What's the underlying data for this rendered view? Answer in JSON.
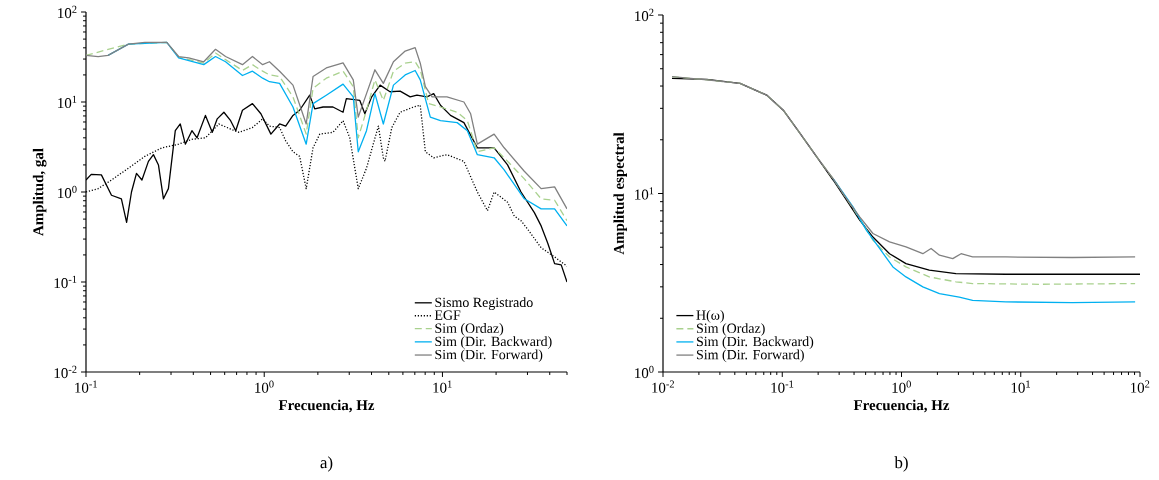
{
  "chart_data": [
    {
      "type": "line",
      "xlabel": "Frecuencia, Hz",
      "ylabel": "Amplitud, gal",
      "annotations": [
        "a)"
      ],
      "log": "xy",
      "legend": "bottom right",
      "xlim": [
        0.1,
        50
      ],
      "ylim": [
        0.01,
        100
      ],
      "xticks": [
        {
          "value": 0.1,
          "label": "10$^{-1}$"
        },
        {
          "value": 1,
          "label": "10$^{0}$"
        },
        {
          "value": 10,
          "label": "10$^{1}$"
        }
      ],
      "yticks": [
        {
          "value": 0.01,
          "label": "10$^{-2}$"
        },
        {
          "value": 0.1,
          "label": "10$^{-1}$"
        },
        {
          "value": 1,
          "label": "10$^{0}$"
        },
        {
          "value": 10,
          "label": "10$^{1}$"
        },
        {
          "value": 100,
          "label": "10$^{2}$"
        }
      ],
      "series": [
        {
          "name": "Sismo Registrado",
          "color": "#000000",
          "x": [
            0.1,
            0.107,
            0.122,
            0.139,
            0.158,
            0.169,
            0.18,
            0.192,
            0.206,
            0.224,
            0.239,
            0.255,
            0.272,
            0.29,
            0.317,
            0.338,
            0.361,
            0.393,
            0.42,
            0.468,
            0.511,
            0.545,
            0.594,
            0.648,
            0.692,
            0.755,
            0.859,
            0.958,
            1.09,
            1.22,
            1.32,
            1.45,
            1.58,
            1.8,
            1.92,
            2.14,
            2.43,
            2.77,
            2.89,
            3.44,
            3.67,
            4.01,
            4.47,
            5.08,
            5.79,
            6.59,
            7.19,
            8.19,
            8.93,
            9.75,
            11.1,
            13.2,
            15.7,
            19.5,
            23.2,
            27.6,
            32.8,
            35.8,
            39.0,
            42.6,
            46.4,
            50
          ],
          "values": [
            1.36,
            1.57,
            1.55,
            0.92,
            0.84,
            0.46,
            1.0,
            1.61,
            1.36,
            2.19,
            2.6,
            2.0,
            0.84,
            1.09,
            4.8,
            5.7,
            3.4,
            4.8,
            4.0,
            7.1,
            4.6,
            6.5,
            7.7,
            6.2,
            4.8,
            8.1,
            9.6,
            7.4,
            4.4,
            5.7,
            5.4,
            7.1,
            8.1,
            11.9,
            8.4,
            8.8,
            8.8,
            7.7,
            10.9,
            10.4,
            7.4,
            11.4,
            15.4,
            13.0,
            13.2,
            11.4,
            11.9,
            11.4,
            12.4,
            9.2,
            7.1,
            5.9,
            3.1,
            3.1,
            2.0,
            1.0,
            0.59,
            0.42,
            0.27,
            0.16,
            0.155,
            0.1
          ]
        },
        {
          "name": "EGF",
          "color": "#000000",
          "line_style": "dotted",
          "x": [
            0.1,
            0.117,
            0.139,
            0.173,
            0.214,
            0.267,
            0.331,
            0.393,
            0.468,
            0.557,
            0.648,
            0.722,
            0.859,
            0.98,
            1.07,
            1.22,
            1.32,
            1.45,
            1.58,
            1.72,
            1.88,
            2.05,
            2.43,
            2.77,
            3.02,
            3.37,
            3.75,
            4.09,
            4.37,
            4.66,
            4.76,
            5.2,
            5.79,
            6.89,
            7.51,
            8.02,
            8.93,
            10.6,
            13.2,
            15.7,
            17.9,
            19.5,
            23.2,
            25.3,
            27.6,
            30.1,
            35.8,
            42.6,
            50
          ],
          "values": [
            1.0,
            1.09,
            1.36,
            1.84,
            2.49,
            3.1,
            3.4,
            3.85,
            4.0,
            5.7,
            5.0,
            4.6,
            5.2,
            6.5,
            5.4,
            5.2,
            3.7,
            2.8,
            2.49,
            1.09,
            3.1,
            4.4,
            4.6,
            6.2,
            4.0,
            1.09,
            1.84,
            3.4,
            5.4,
            2.4,
            2.19,
            5.2,
            7.7,
            8.8,
            9.2,
            2.8,
            2.4,
            2.6,
            2.19,
            1.0,
            0.62,
            1.0,
            0.77,
            0.54,
            0.48,
            0.385,
            0.24,
            0.19,
            0.15
          ]
        },
        {
          "name": "Sim (Ordaz)",
          "color": "#a9d18e",
          "line_style": "dashed",
          "x": [
            0.1,
            0.173,
            0.284,
            0.331,
            0.458,
            0.533,
            0.607,
            0.755,
            0.859,
            0.98,
            1.07,
            1.22,
            1.45,
            1.72,
            1.88,
            2.23,
            2.77,
            3.16,
            3.37,
            3.75,
            4.18,
            4.66,
            5.31,
            6.18,
            7.03,
            7.51,
            8.37,
            9.75,
            12.1,
            13.8,
            15.7,
            19.5,
            22.2,
            28.8,
            35.8,
            42.6,
            50
          ],
          "values": [
            33,
            44,
            46,
            31.5,
            27,
            35,
            29.6,
            22.4,
            26,
            22,
            20,
            19.2,
            11.4,
            4.4,
            14.2,
            18.4,
            22,
            14.8,
            4.0,
            8.1,
            17.6,
            10.4,
            22,
            27,
            28,
            22.8,
            9.6,
            8.8,
            7.7,
            6.2,
            2.8,
            3.1,
            2.4,
            1.4,
            0.84,
            0.81,
            0.48
          ]
        },
        {
          "name": "Sim (Dir. Backward)",
          "color": "#00b0f0",
          "x": [
            0.133,
            0.173,
            0.284,
            0.331,
            0.458,
            0.533,
            0.607,
            0.755,
            0.859,
            0.98,
            1.07,
            1.22,
            1.45,
            1.72,
            1.88,
            2.23,
            2.77,
            3.16,
            3.37,
            3.75,
            4.18,
            4.66,
            5.31,
            6.18,
            7.03,
            7.51,
            8.55,
            9.75,
            12.1,
            13.8,
            15.7,
            19.5,
            22.2,
            28.8,
            35.8,
            42.6,
            50
          ],
          "values": [
            33,
            44,
            46,
            31,
            26,
            32,
            28,
            19.7,
            22,
            18.4,
            16.8,
            16.1,
            8.8,
            3.4,
            9.6,
            11.9,
            15.8,
            11.4,
            2.8,
            4.8,
            12.4,
            5.7,
            15.4,
            20,
            22.4,
            17.6,
            6.8,
            6.2,
            5.9,
            4.8,
            2.6,
            2.4,
            1.76,
            0.84,
            0.65,
            0.65,
            0.42
          ]
        },
        {
          "name": "Sim (Dir. Forward)",
          "color": "#808080",
          "x": [
            0.1,
            0.117,
            0.133,
            0.173,
            0.214,
            0.284,
            0.331,
            0.377,
            0.458,
            0.533,
            0.607,
            0.755,
            0.859,
            0.98,
            1.07,
            1.22,
            1.45,
            1.72,
            1.88,
            2.23,
            2.77,
            3.16,
            3.37,
            3.75,
            4.18,
            4.66,
            5.31,
            6.18,
            7.03,
            7.51,
            8.02,
            8.75,
            10.6,
            13.2,
            14.4,
            15.7,
            19.5,
            22.2,
            28.8,
            35.8,
            42.6,
            50
          ],
          "values": [
            33,
            32,
            33,
            44,
            46,
            46,
            32,
            31,
            28,
            38.5,
            32,
            26,
            32,
            26,
            28,
            22,
            15.4,
            5.7,
            19.2,
            23.9,
            27.2,
            17.6,
            6.8,
            12.4,
            22.8,
            16.1,
            28,
            36.8,
            40.2,
            27,
            14.8,
            11.4,
            11.4,
            10,
            7.4,
            3.4,
            4.4,
            3.1,
            1.7,
            1.09,
            1.14,
            0.65
          ]
        }
      ]
    },
    {
      "type": "line",
      "xlabel": "Frecuencia, Hz",
      "ylabel": "Amplitud espectral",
      "annotations": [
        "b)"
      ],
      "log": "xy",
      "legend": "bottom left",
      "xlim": [
        0.01,
        100
      ],
      "ylim": [
        1,
        100
      ],
      "xticks": [
        {
          "value": 0.01,
          "label": "10$^{-2}$"
        },
        {
          "value": 0.1,
          "label": "10$^{-1}$"
        },
        {
          "value": 1,
          "label": "10$^{0}$"
        },
        {
          "value": 10,
          "label": "10$^{1}$"
        },
        {
          "value": 100,
          "label": "10$^{2}$"
        }
      ],
      "yticks": [
        {
          "value": 1,
          "label": "10$^{0}$"
        },
        {
          "value": 10,
          "label": "10$^{1}$"
        },
        {
          "value": 100,
          "label": "10$^{2}$"
        }
      ],
      "series": [
        {
          "name": "H(ω)",
          "color": "#000000",
          "x": [
            0.0119,
            0.0233,
            0.0443,
            0.0739,
            0.102,
            0.141,
            0.194,
            0.267,
            0.345,
            0.446,
            0.576,
            0.794,
            1.09,
            1.71,
            2.86,
            7.5,
            100
          ],
          "values": [
            44.2,
            43.6,
            41.4,
            35.6,
            29.3,
            21.7,
            16.1,
            11.9,
            9.2,
            7.1,
            5.7,
            4.6,
            4.05,
            3.72,
            3.56,
            3.53,
            3.53
          ]
        },
        {
          "name": "Sim (Ordaz)",
          "color": "#a9d18e",
          "line_style": "dashed",
          "x": [
            0.0119,
            0.0233,
            0.0443,
            0.0739,
            0.102,
            0.141,
            0.194,
            0.267,
            0.345,
            0.446,
            0.576,
            0.794,
            1.09,
            1.71,
            2.86,
            3.95,
            14.2,
            91
          ],
          "values": [
            45.1,
            43.3,
            41.4,
            35.6,
            29.3,
            21.7,
            16.1,
            12.1,
            9.4,
            7.24,
            5.47,
            4.41,
            3.88,
            3.41,
            3.2,
            3.13,
            3.1,
            3.13
          ]
        },
        {
          "name": "Sim (Dir. Backward)",
          "color": "#00b0f0",
          "x": [
            0.267,
            0.392,
            0.507,
            0.655,
            0.847,
            1.09,
            1.51,
            2.08,
            3.05,
            3.95,
            7.5,
            27,
            91
          ],
          "values": [
            12.1,
            8.42,
            6.23,
            4.92,
            3.88,
            3.41,
            3.0,
            2.75,
            2.63,
            2.52,
            2.47,
            2.45,
            2.47
          ]
        },
        {
          "name": "Sim (Dir. Forward)",
          "color": "#808080",
          "x": [
            0.0119,
            0.0233,
            0.0443,
            0.0739,
            0.102,
            0.141,
            0.194,
            0.267,
            0.345,
            0.446,
            0.576,
            0.794,
            1.09,
            1.51,
            1.77,
            2.08,
            2.69,
            3.16,
            3.95,
            7.5,
            27,
            91
          ],
          "values": [
            45.1,
            43.3,
            41.4,
            35.6,
            29.3,
            21.7,
            16.1,
            12.1,
            9.4,
            7.4,
            5.97,
            5.36,
            5.02,
            4.6,
            4.92,
            4.51,
            4.32,
            4.6,
            4.41,
            4.41,
            4.38,
            4.41
          ]
        }
      ]
    }
  ]
}
